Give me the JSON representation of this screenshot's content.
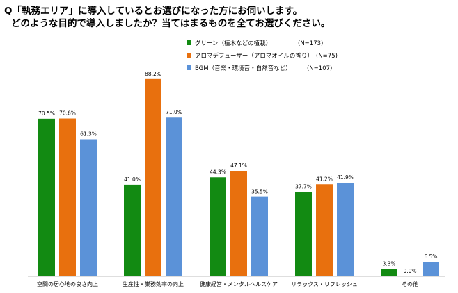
{
  "question": {
    "line1": "Q「執務エリア」に導入しているとお選びになった方にお伺いします。",
    "line2": "どのような目的で導入しましたか？当てはまるものを全てお選びください。"
  },
  "colors": {
    "green": "#128a12",
    "orange": "#e8700e",
    "blue": "#5b92d8"
  },
  "chart_data": {
    "type": "bar",
    "categories": [
      "空間の居心地の良さ向上",
      "生産性・業務効率の向上",
      "健康経営・メンタルヘルスケア",
      "リラックス・リフレッシュ",
      "その他"
    ],
    "series": [
      {
        "name": "グリーン（植木などの植栽）",
        "n_label": "(N=173)",
        "color": "#128a12",
        "values": [
          70.5,
          41.0,
          44.3,
          37.7,
          3.3
        ],
        "labels": [
          "70.5%",
          "41.0%",
          "44.3%",
          "37.7%",
          "3.3%"
        ]
      },
      {
        "name": "アロマデフューザー（アロマオイルの香り）",
        "n_label": "(N=75)",
        "color": "#e8700e",
        "values": [
          70.6,
          88.2,
          47.1,
          41.2,
          0.0
        ],
        "labels": [
          "70.6%",
          "88.2%",
          "47.1%",
          "41.2%",
          "0.0%"
        ]
      },
      {
        "name": "BGM（音楽・環境音・自然音など）",
        "n_label": "(N=107)",
        "color": "#5b92d8",
        "values": [
          61.3,
          71.0,
          35.5,
          41.9,
          6.5
        ],
        "labels": [
          "61.3%",
          "71.0%",
          "35.5%",
          "41.9%",
          "6.5%"
        ]
      }
    ],
    "ylim": [
      0,
      100
    ],
    "grid": false,
    "legend_position": "top-right"
  }
}
